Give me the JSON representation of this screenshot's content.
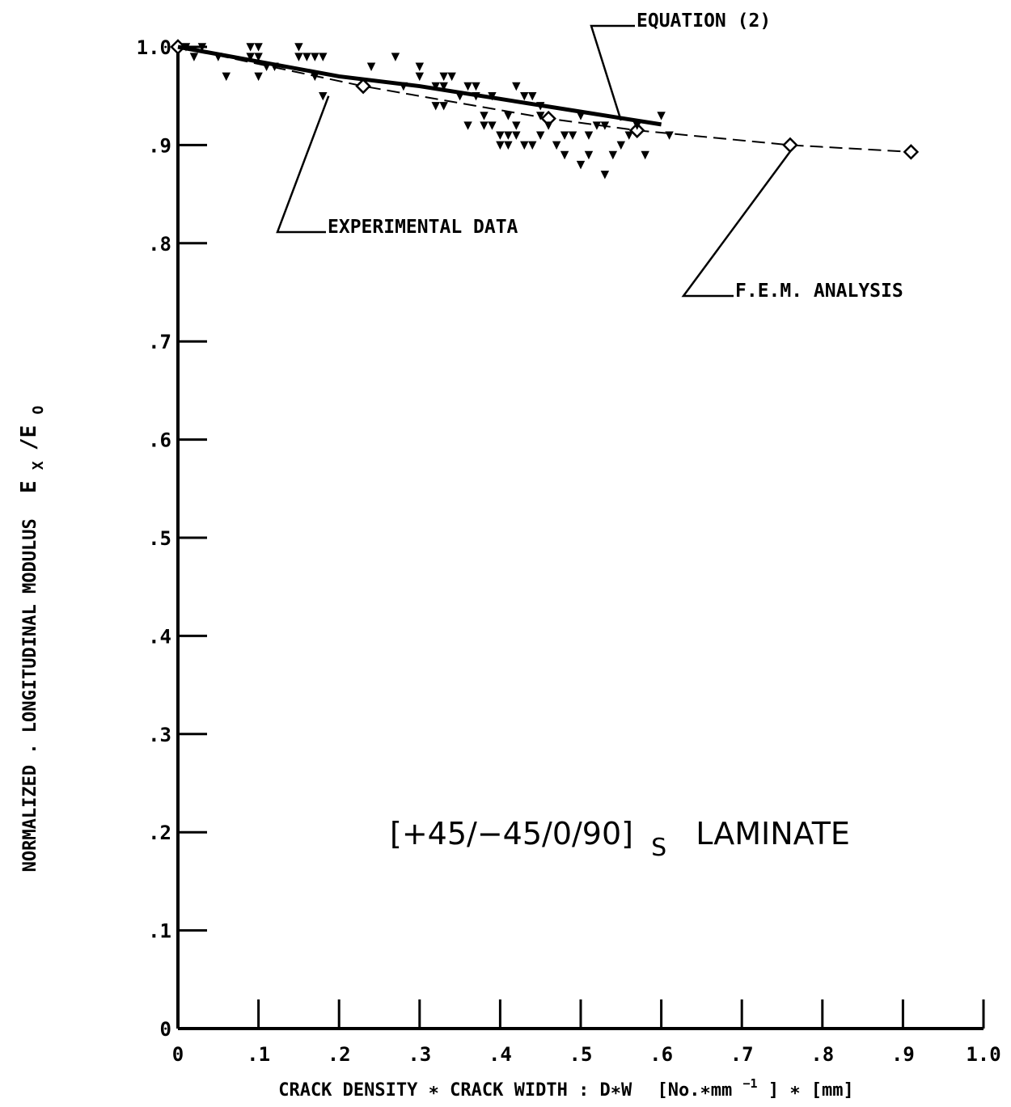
{
  "chart_data": {
    "type": "scatter",
    "title": "",
    "xlabel": "CRACK DENSITY ∗ CRACK WIDTH : D∗W",
    "xlabel_units_parts": [
      "[No.∗mm",
      "−1",
      "] ∗ [mm]"
    ],
    "ylabel_parts": [
      "NORMALIZED . LONGITUDINAL MODULUS",
      "E",
      "X",
      "/E",
      "O"
    ],
    "xlim": [
      0,
      1.0
    ],
    "ylim": [
      0,
      1.0
    ],
    "x_ticks": [
      0,
      0.1,
      0.2,
      0.3,
      0.4,
      0.5,
      0.6,
      0.7,
      0.8,
      0.9,
      1.0
    ],
    "x_tick_labels": [
      "0",
      ".1",
      ".2",
      ".3",
      ".4",
      ".5",
      ".6",
      ".7",
      ".8",
      ".9",
      "1.0"
    ],
    "y_ticks": [
      0,
      0.1,
      0.2,
      0.3,
      0.4,
      0.5,
      0.6,
      0.7,
      0.8,
      0.9,
      1.0
    ],
    "y_tick_labels": [
      "0",
      ".1",
      ".2",
      ".3",
      ".4",
      ".5",
      ".6",
      ".7",
      ".8",
      ".9",
      "1.0"
    ],
    "grid": false,
    "annotation_laminate": {
      "main": "[+45/−45/0/90]",
      "subscript": "S",
      "suffix": "LAMINATE"
    },
    "series": [
      {
        "name": "EXPERIMENTAL DATA",
        "kind": "scatter",
        "marker": "triangle-down-filled",
        "x": [
          0.01,
          0.02,
          0.03,
          0.05,
          0.06,
          0.09,
          0.09,
          0.1,
          0.1,
          0.1,
          0.11,
          0.12,
          0.15,
          0.15,
          0.16,
          0.17,
          0.17,
          0.18,
          0.18,
          0.24,
          0.27,
          0.28,
          0.3,
          0.3,
          0.32,
          0.32,
          0.33,
          0.33,
          0.33,
          0.34,
          0.35,
          0.36,
          0.36,
          0.37,
          0.37,
          0.38,
          0.38,
          0.39,
          0.39,
          0.4,
          0.4,
          0.41,
          0.41,
          0.41,
          0.42,
          0.42,
          0.42,
          0.43,
          0.43,
          0.44,
          0.44,
          0.45,
          0.45,
          0.45,
          0.46,
          0.47,
          0.48,
          0.48,
          0.49,
          0.5,
          0.5,
          0.51,
          0.51,
          0.52,
          0.53,
          0.53,
          0.54,
          0.55,
          0.56,
          0.57,
          0.58,
          0.6,
          0.61
        ],
        "y": [
          1.0,
          0.99,
          1.0,
          0.99,
          0.97,
          0.99,
          1.0,
          0.97,
          0.99,
          1.0,
          0.98,
          0.98,
          0.99,
          1.0,
          0.99,
          0.97,
          0.99,
          0.99,
          0.95,
          0.98,
          0.99,
          0.96,
          0.97,
          0.98,
          0.94,
          0.96,
          0.94,
          0.96,
          0.97,
          0.97,
          0.95,
          0.92,
          0.96,
          0.95,
          0.96,
          0.92,
          0.93,
          0.92,
          0.95,
          0.91,
          0.9,
          0.93,
          0.91,
          0.9,
          0.96,
          0.92,
          0.91,
          0.9,
          0.95,
          0.95,
          0.9,
          0.94,
          0.93,
          0.91,
          0.92,
          0.9,
          0.91,
          0.89,
          0.91,
          0.88,
          0.93,
          0.89,
          0.91,
          0.92,
          0.87,
          0.92,
          0.89,
          0.9,
          0.91,
          0.92,
          0.89,
          0.93,
          0.91
        ]
      },
      {
        "name": "EQUATION (2)",
        "kind": "line",
        "line_style": "solid-thick",
        "x": [
          0.0,
          0.1,
          0.2,
          0.3,
          0.4,
          0.5,
          0.6
        ],
        "y": [
          1.0,
          0.985,
          0.97,
          0.96,
          0.947,
          0.934,
          0.921
        ]
      },
      {
        "name": "F.E.M. ANALYSIS",
        "kind": "line",
        "line_style": "dashed",
        "marker": "diamond-open",
        "x": [
          0.0,
          0.23,
          0.46,
          0.57,
          0.76,
          0.91
        ],
        "y": [
          1.0,
          0.96,
          0.927,
          0.915,
          0.9,
          0.893
        ]
      }
    ],
    "callouts": [
      {
        "series": "EQUATION (2)",
        "label": "EQUATION (2)"
      },
      {
        "series": "EXPERIMENTAL DATA",
        "label": "EXPERIMENTAL DATA"
      },
      {
        "series": "F.E.M. ANALYSIS",
        "label": "F.E.M. ANALYSIS"
      }
    ]
  }
}
